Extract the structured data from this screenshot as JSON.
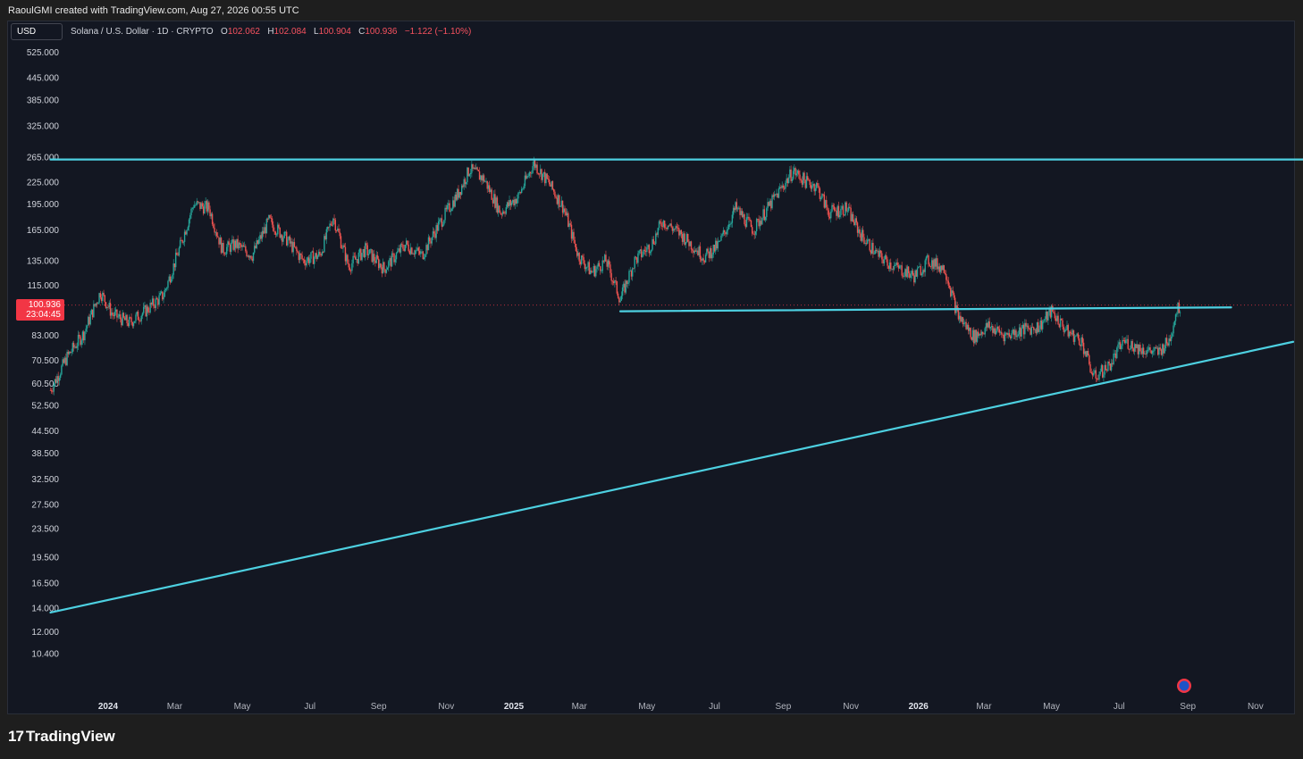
{
  "header": {
    "attribution": "RaoulGMI created with TradingView.com, Aug 27, 2026 00:55 UTC"
  },
  "toolbar": {
    "currency": "USD"
  },
  "legend": {
    "symbol": "Solana / U.S. Dollar · 1D · CRYPTO",
    "open_label": "O",
    "open": "102.062",
    "high_label": "H",
    "high": "102.084",
    "low_label": "L",
    "low": "100.904",
    "close_label": "C",
    "close": "100.936",
    "change": "−1.122 (−1.10%)"
  },
  "price_badge": {
    "price": "100.936",
    "countdown": "23:04:45"
  },
  "footer": {
    "brand": "TradingView"
  },
  "colors": {
    "up": "#26a69a",
    "down": "#ef5350",
    "trendline": "#4dd0e1",
    "background": "#131722",
    "badge": "#f23645"
  },
  "chart_data": {
    "type": "candlestick",
    "y_scale": "log",
    "ylim": [
      9.5,
      560
    ],
    "y_ticks": [
      "525.000",
      "445.000",
      "385.000",
      "325.000",
      "265.000",
      "225.000",
      "195.000",
      "165.000",
      "135.000",
      "115.000",
      "83.000",
      "70.500",
      "60.500",
      "52.500",
      "44.500",
      "38.500",
      "32.500",
      "27.500",
      "23.500",
      "19.500",
      "16.500",
      "14.000",
      "12.000",
      "10.400"
    ],
    "x_ticks": [
      {
        "label": "2024",
        "date": "2024-01-01",
        "year": true
      },
      {
        "label": "Mar",
        "date": "2024-03-01"
      },
      {
        "label": "May",
        "date": "2024-05-01"
      },
      {
        "label": "Jul",
        "date": "2024-07-01"
      },
      {
        "label": "Sep",
        "date": "2024-09-01"
      },
      {
        "label": "Nov",
        "date": "2024-11-01"
      },
      {
        "label": "2025",
        "date": "2025-01-01",
        "year": true
      },
      {
        "label": "Mar",
        "date": "2025-03-01"
      },
      {
        "label": "May",
        "date": "2025-05-01"
      },
      {
        "label": "Jul",
        "date": "2025-07-01"
      },
      {
        "label": "Sep",
        "date": "2025-09-01"
      },
      {
        "label": "Nov",
        "date": "2025-11-01"
      },
      {
        "label": "2026",
        "date": "2026-01-01",
        "year": true
      },
      {
        "label": "Mar",
        "date": "2026-03-01"
      },
      {
        "label": "May",
        "date": "2026-05-01"
      },
      {
        "label": "Jul",
        "date": "2026-07-01"
      },
      {
        "label": "Sep",
        "date": "2026-09-01"
      },
      {
        "label": "Nov",
        "date": "2026-11-01"
      }
    ],
    "price_path": [
      [
        "2023-11-10",
        58
      ],
      [
        "2023-11-25",
        72
      ],
      [
        "2023-12-10",
        84
      ],
      [
        "2023-12-25",
        110
      ],
      [
        "2024-01-05",
        95
      ],
      [
        "2024-01-20",
        90
      ],
      [
        "2024-02-05",
        98
      ],
      [
        "2024-02-20",
        108
      ],
      [
        "2024-03-05",
        145
      ],
      [
        "2024-03-18",
        195
      ],
      [
        "2024-04-01",
        190
      ],
      [
        "2024-04-13",
        145
      ],
      [
        "2024-04-25",
        150
      ],
      [
        "2024-05-10",
        140
      ],
      [
        "2024-05-25",
        175
      ],
      [
        "2024-06-10",
        155
      ],
      [
        "2024-06-25",
        135
      ],
      [
        "2024-07-10",
        140
      ],
      [
        "2024-07-22",
        180
      ],
      [
        "2024-08-05",
        130
      ],
      [
        "2024-08-20",
        145
      ],
      [
        "2024-09-06",
        128
      ],
      [
        "2024-09-25",
        150
      ],
      [
        "2024-10-10",
        140
      ],
      [
        "2024-10-25",
        170
      ],
      [
        "2024-11-12",
        210
      ],
      [
        "2024-11-22",
        245
      ],
      [
        "2024-12-05",
        230
      ],
      [
        "2024-12-20",
        185
      ],
      [
        "2025-01-05",
        205
      ],
      [
        "2025-01-19",
        255
      ],
      [
        "2025-02-01",
        225
      ],
      [
        "2025-02-15",
        190
      ],
      [
        "2025-02-28",
        140
      ],
      [
        "2025-03-12",
        125
      ],
      [
        "2025-03-25",
        135
      ],
      [
        "2025-04-07",
        105
      ],
      [
        "2025-04-20",
        135
      ],
      [
        "2025-05-05",
        150
      ],
      [
        "2025-05-15",
        175
      ],
      [
        "2025-06-01",
        160
      ],
      [
        "2025-06-22",
        138
      ],
      [
        "2025-07-05",
        150
      ],
      [
        "2025-07-20",
        190
      ],
      [
        "2025-08-05",
        165
      ],
      [
        "2025-08-25",
        205
      ],
      [
        "2025-09-10",
        242
      ],
      [
        "2025-09-22",
        225
      ],
      [
        "2025-10-01",
        220
      ],
      [
        "2025-10-12",
        185
      ],
      [
        "2025-10-28",
        190
      ],
      [
        "2025-11-10",
        160
      ],
      [
        "2025-11-25",
        140
      ],
      [
        "2025-12-10",
        130
      ],
      [
        "2025-12-28",
        122
      ],
      [
        "2026-01-10",
        135
      ],
      [
        "2026-01-25",
        128
      ],
      [
        "2026-02-05",
        95
      ],
      [
        "2026-02-20",
        82
      ],
      [
        "2026-03-05",
        88
      ],
      [
        "2026-03-20",
        83
      ],
      [
        "2026-04-05",
        86
      ],
      [
        "2026-04-20",
        88
      ],
      [
        "2026-05-01",
        97
      ],
      [
        "2026-05-15",
        85
      ],
      [
        "2026-05-28",
        80
      ],
      [
        "2026-06-08",
        63
      ],
      [
        "2026-06-22",
        68
      ],
      [
        "2026-07-05",
        80
      ],
      [
        "2026-07-20",
        76
      ],
      [
        "2026-08-05",
        74
      ],
      [
        "2026-08-15",
        80
      ],
      [
        "2026-08-22",
        98
      ],
      [
        "2026-08-26",
        101
      ]
    ],
    "trendlines": [
      {
        "from": [
          "2023-11-10",
          261
        ],
        "to": [
          "2026-12-31",
          261
        ]
      },
      {
        "from": [
          "2025-04-07",
          97
        ],
        "to": [
          "2026-10-10",
          99.5
        ]
      },
      {
        "from": [
          "2023-11-10",
          13.6
        ],
        "to": [
          "2026-12-05",
          79.5
        ]
      }
    ],
    "last_price": 100.936
  }
}
